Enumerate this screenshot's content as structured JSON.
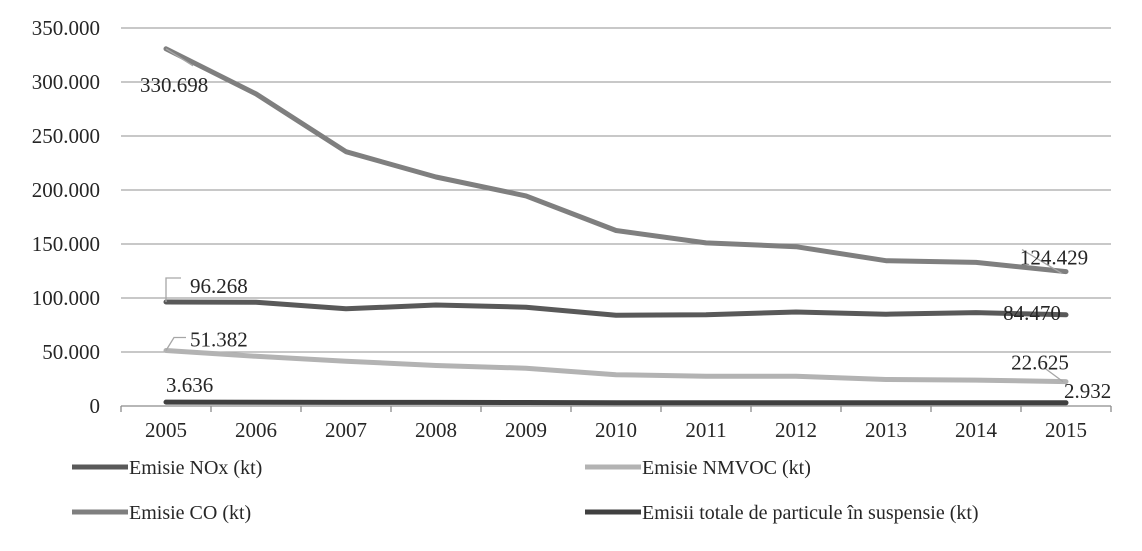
{
  "chart_data": {
    "type": "line",
    "title": "",
    "xlabel": "",
    "ylabel": "",
    "categories": [
      "2005",
      "2006",
      "2007",
      "2008",
      "2009",
      "2010",
      "2011",
      "2012",
      "2013",
      "2014",
      "2015"
    ],
    "ylim": [
      0,
      350000
    ],
    "yticks": [
      0,
      50000,
      100000,
      150000,
      200000,
      250000,
      300000,
      350000
    ],
    "ytick_labels": [
      "0",
      "50.000",
      "100.000",
      "150.000",
      "200.000",
      "250.000",
      "300.000",
      "350.000"
    ],
    "grid": true,
    "legend_position": "bottom",
    "series": [
      {
        "name": "Emisie NOx (kt)",
        "color": "#595959",
        "values": [
          96268,
          96000,
          90000,
          93500,
          91500,
          84000,
          84500,
          87000,
          85000,
          86500,
          84470
        ]
      },
      {
        "name": "Emisie NMVOC (kt)",
        "color": "#b3b3b3",
        "values": [
          51382,
          46000,
          41500,
          37500,
          35000,
          29000,
          27500,
          27500,
          24500,
          24000,
          22625
        ]
      },
      {
        "name": "Emisie CO (kt)",
        "color": "#7f7f7f",
        "values": [
          330698,
          289000,
          235500,
          212000,
          194500,
          162500,
          151000,
          147500,
          134500,
          133000,
          124429
        ]
      },
      {
        "name": "Emisii totale de particule în suspensie (kt)",
        "color": "#404040",
        "values": [
          3636,
          3500,
          3300,
          3300,
          3200,
          3100,
          3100,
          3100,
          3000,
          2950,
          2932
        ]
      }
    ],
    "data_labels": [
      {
        "text": "330.698",
        "series": 2,
        "point": 0
      },
      {
        "text": "124.429",
        "series": 2,
        "point": 10
      },
      {
        "text": "96.268",
        "series": 0,
        "point": 0
      },
      {
        "text": "84.470",
        "series": 0,
        "point": 10
      },
      {
        "text": "51.382",
        "series": 1,
        "point": 0
      },
      {
        "text": "22.625",
        "series": 1,
        "point": 10
      },
      {
        "text": "3.636",
        "series": 3,
        "point": 0
      },
      {
        "text": "2.932",
        "series": 3,
        "point": 10
      }
    ]
  }
}
